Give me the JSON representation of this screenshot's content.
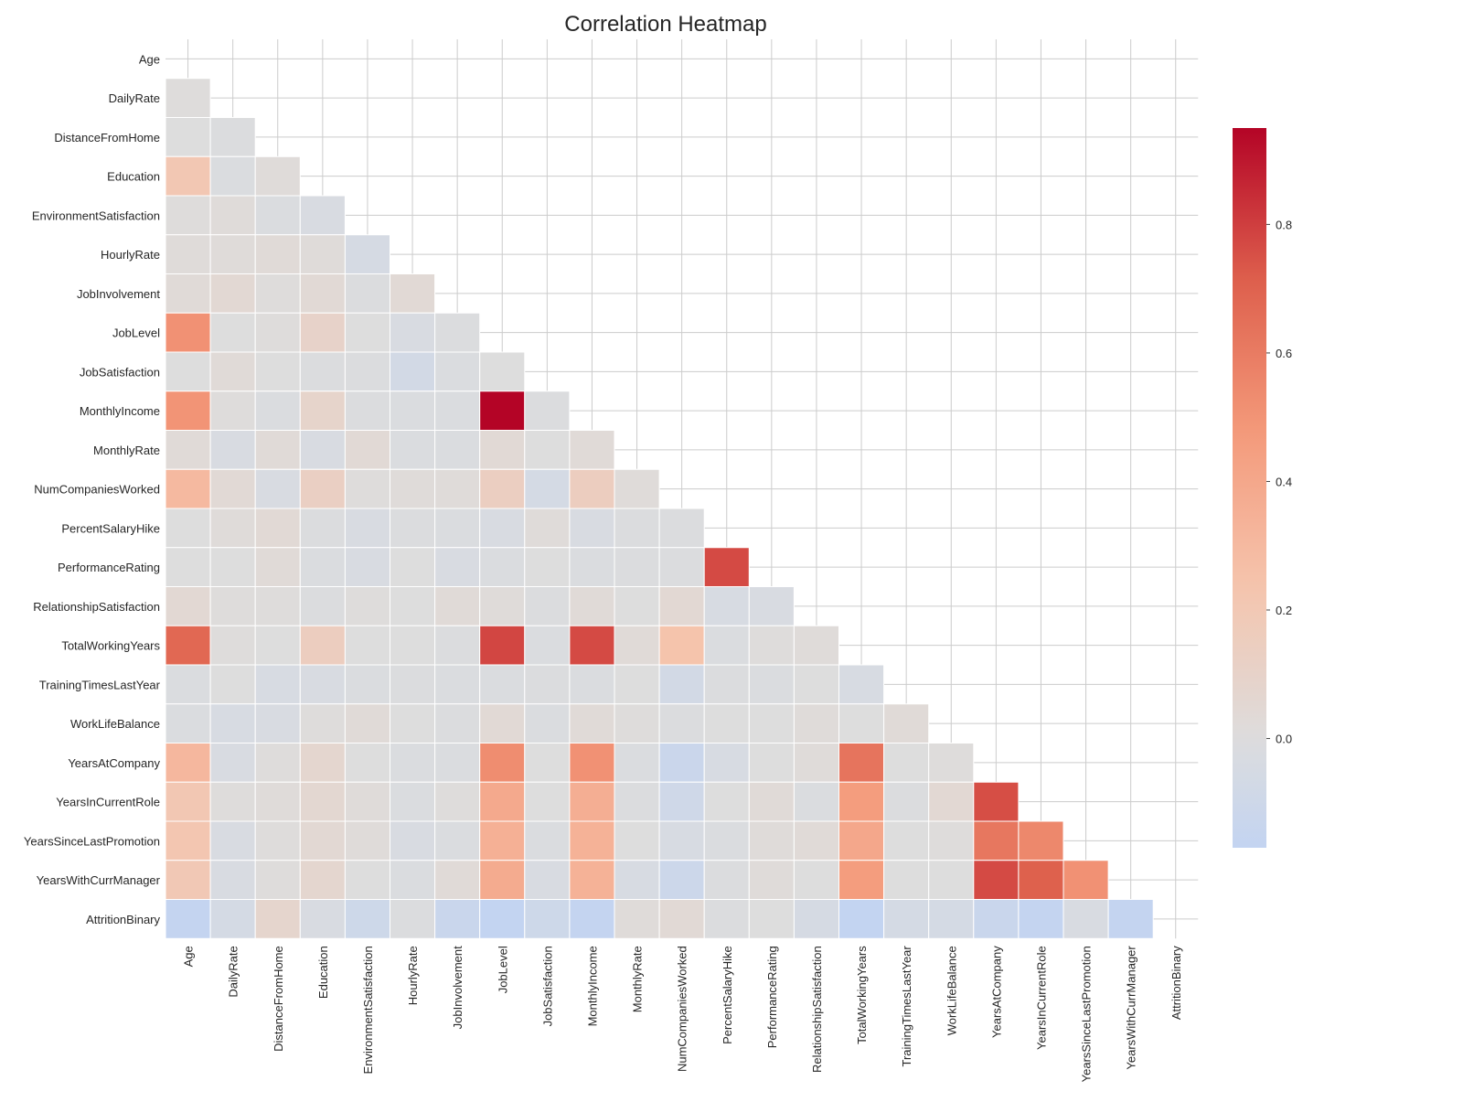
{
  "chart_data": {
    "type": "heatmap",
    "title": "Correlation Heatmap",
    "mask": "upper-triangle-including-diagonal",
    "labels": [
      "Age",
      "DailyRate",
      "DistanceFromHome",
      "Education",
      "EnvironmentSatisfaction",
      "HourlyRate",
      "JobInvolvement",
      "JobLevel",
      "JobSatisfaction",
      "MonthlyIncome",
      "MonthlyRate",
      "NumCompaniesWorked",
      "PercentSalaryHike",
      "PerformanceRating",
      "RelationshipSatisfaction",
      "TotalWorkingYears",
      "TrainingTimesLastYear",
      "WorkLifeBalance",
      "YearsAtCompany",
      "YearsInCurrentRole",
      "YearsSinceLastPromotion",
      "YearsWithCurrManager",
      "AttritionBinary"
    ],
    "lower_triangle_rows": [
      [],
      [
        0.01
      ],
      [
        0.0,
        -0.01
      ],
      [
        0.21,
        -0.02,
        0.02
      ],
      [
        0.01,
        0.02,
        -0.02,
        -0.03
      ],
      [
        0.02,
        0.02,
        0.03,
        0.02,
        -0.05
      ],
      [
        0.03,
        0.05,
        0.01,
        0.04,
        -0.01,
        0.04
      ],
      [
        0.51,
        0.0,
        0.01,
        0.1,
        0.0,
        -0.03,
        -0.01
      ],
      [
        0.0,
        0.03,
        0.0,
        -0.01,
        -0.01,
        -0.07,
        -0.02,
        -0.0
      ],
      [
        0.5,
        0.01,
        -0.02,
        0.09,
        -0.01,
        -0.02,
        -0.02,
        0.95,
        -0.01
      ],
      [
        0.03,
        -0.03,
        0.03,
        -0.03,
        0.04,
        -0.02,
        -0.02,
        0.04,
        0.0,
        0.03
      ],
      [
        0.3,
        0.04,
        -0.03,
        0.13,
        0.01,
        0.02,
        0.02,
        0.14,
        -0.06,
        0.15,
        0.02
      ],
      [
        0.0,
        0.02,
        0.04,
        -0.01,
        -0.03,
        -0.01,
        -0.02,
        -0.03,
        0.02,
        -0.03,
        -0.01,
        -0.01
      ],
      [
        0.0,
        0.0,
        0.03,
        -0.02,
        -0.03,
        -0.0,
        -0.03,
        -0.02,
        0.0,
        -0.02,
        -0.01,
        -0.01,
        0.77
      ],
      [
        0.05,
        0.01,
        0.01,
        -0.01,
        0.01,
        0.0,
        0.03,
        0.02,
        -0.01,
        0.03,
        -0.0,
        0.05,
        -0.04,
        -0.03
      ],
      [
        0.68,
        0.01,
        0.0,
        0.15,
        -0.0,
        -0.0,
        -0.01,
        0.78,
        -0.02,
        0.77,
        0.03,
        0.24,
        -0.02,
        0.01,
        0.02
      ],
      [
        -0.02,
        0.0,
        -0.04,
        -0.03,
        -0.02,
        -0.01,
        -0.02,
        -0.02,
        -0.01,
        -0.02,
        0.0,
        -0.07,
        -0.01,
        -0.02,
        0.0,
        -0.04
      ],
      [
        -0.02,
        -0.04,
        -0.03,
        0.01,
        0.03,
        -0.0,
        -0.01,
        0.04,
        -0.02,
        0.03,
        0.01,
        -0.01,
        -0.0,
        0.0,
        0.02,
        0.0,
        0.03
      ],
      [
        0.31,
        -0.03,
        0.01,
        0.07,
        0.0,
        -0.02,
        -0.02,
        0.53,
        -0.0,
        0.51,
        -0.02,
        -0.12,
        -0.04,
        0.0,
        0.02,
        0.63,
        0.0,
        0.01
      ],
      [
        0.21,
        0.01,
        0.02,
        0.06,
        0.02,
        -0.02,
        0.01,
        0.39,
        -0.0,
        0.36,
        -0.01,
        -0.09,
        -0.0,
        0.03,
        -0.02,
        0.46,
        -0.01,
        0.05,
        0.76
      ],
      [
        0.22,
        -0.03,
        0.01,
        0.05,
        0.02,
        -0.03,
        -0.02,
        0.35,
        -0.02,
        0.34,
        0.0,
        -0.04,
        -0.02,
        0.02,
        0.03,
        0.4,
        -0.0,
        0.01,
        0.62,
        0.55
      ],
      [
        0.2,
        -0.03,
        0.01,
        0.07,
        -0.0,
        -0.02,
        0.03,
        0.38,
        -0.03,
        0.34,
        -0.04,
        -0.11,
        -0.01,
        0.02,
        -0.0,
        0.46,
        -0.0,
        0.0,
        0.77,
        0.71,
        0.51
      ],
      [
        -0.16,
        -0.06,
        0.08,
        -0.03,
        -0.1,
        -0.01,
        -0.13,
        -0.17,
        -0.1,
        -0.16,
        0.02,
        0.04,
        -0.01,
        0.0,
        -0.05,
        -0.17,
        -0.06,
        -0.06,
        -0.13,
        -0.16,
        -0.03,
        -0.16
      ]
    ],
    "colorbar": {
      "colormap": "coolwarm",
      "range": [
        -0.17,
        0.95
      ],
      "ticks": [
        "0.0",
        "0.2",
        "0.4",
        "0.6",
        "0.8"
      ],
      "tick_values": [
        0.0,
        0.2,
        0.4,
        0.6,
        0.8
      ]
    },
    "grid": true
  }
}
